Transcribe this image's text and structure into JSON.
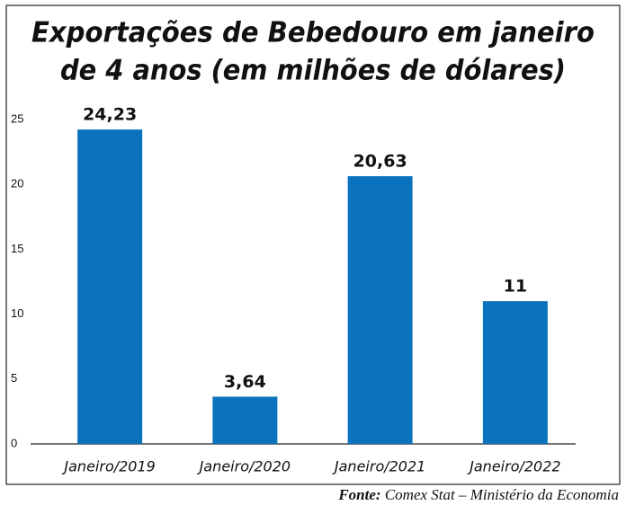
{
  "chart_data": {
    "type": "bar",
    "title": [
      "Exportações de Bebedouro em janeiro",
      "de 4 anos (em milhões de dólares)"
    ],
    "categories": [
      "Janeiro/2019",
      "Janeiro/2020",
      "Janeiro/2021",
      "Janeiro/2022"
    ],
    "values": [
      24.23,
      3.64,
      20.63,
      11
    ],
    "value_labels": [
      "24,23",
      "3,64",
      "20,63",
      "11"
    ],
    "color": "#0b72bd",
    "ylim": [
      0,
      25
    ],
    "yticks": [
      0,
      5,
      10,
      15,
      20,
      25
    ],
    "grid": false,
    "source_label": "Fonte:",
    "source_text": "Comex Stat – Ministério da Economia"
  }
}
